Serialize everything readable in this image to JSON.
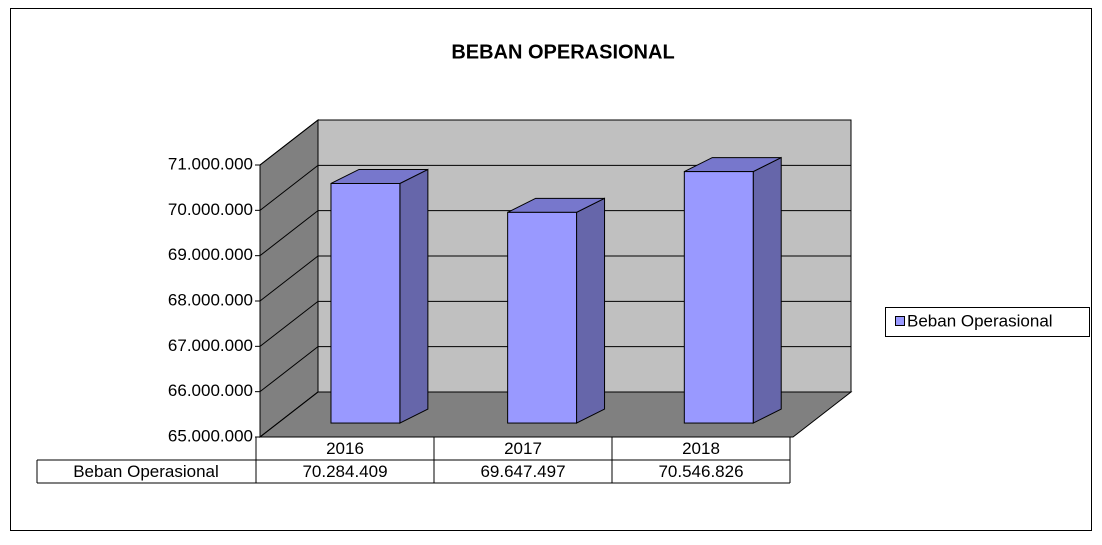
{
  "chart_data": {
    "type": "bar3d",
    "title": "BEBAN OPERASIONAL",
    "categories": [
      "2016",
      "2017",
      "2018"
    ],
    "series": [
      {
        "name": "Beban Operasional",
        "color": "#9999ff",
        "values": [
          70284409,
          69647497,
          70546826
        ],
        "value_labels": [
          "70.284.409",
          "69.647.497",
          "70.546.826"
        ]
      }
    ],
    "ylim": [
      65000000,
      71000000
    ],
    "yticks": [
      {
        "value": 65000000,
        "label": "65.000.000"
      },
      {
        "value": 66000000,
        "label": "66.000.000"
      },
      {
        "value": 67000000,
        "label": "67.000.000"
      },
      {
        "value": 68000000,
        "label": "68.000.000"
      },
      {
        "value": 69000000,
        "label": "69.000.000"
      },
      {
        "value": 70000000,
        "label": "70.000.000"
      },
      {
        "value": 71000000,
        "label": "71.000.000"
      }
    ],
    "grid": true,
    "legend": "right"
  }
}
